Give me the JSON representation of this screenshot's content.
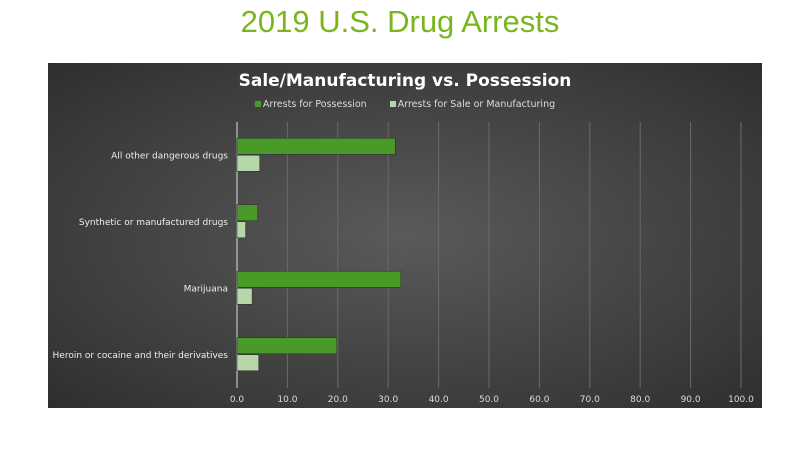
{
  "page_title": "2019 U.S. Drug Arrests",
  "chart_data": {
    "type": "bar",
    "orientation": "horizontal",
    "title": "Sale/Manufacturing  vs.  Possession",
    "categories": [
      "Heroin or cocaine and their derivatives",
      "Marijuana",
      "Synthetic or manufactured drugs",
      "All other dangerous drugs"
    ],
    "series": [
      {
        "name": "Arrests for Possession",
        "values": [
          19.8,
          32.5,
          4.1,
          31.4
        ],
        "color": "#4a9a28"
      },
      {
        "name": "Arrests for Sale or Manufacturing",
        "values": [
          4.3,
          3.0,
          1.7,
          4.5
        ],
        "color": "#b6d7a8"
      }
    ],
    "xlim": [
      0,
      100
    ],
    "xticks": [
      "0.0",
      "10.0",
      "20.0",
      "30.0",
      "40.0",
      "50.0",
      "60.0",
      "70.0",
      "80.0",
      "90.0",
      "100.0"
    ],
    "grid": true,
    "legend_position": "top"
  }
}
